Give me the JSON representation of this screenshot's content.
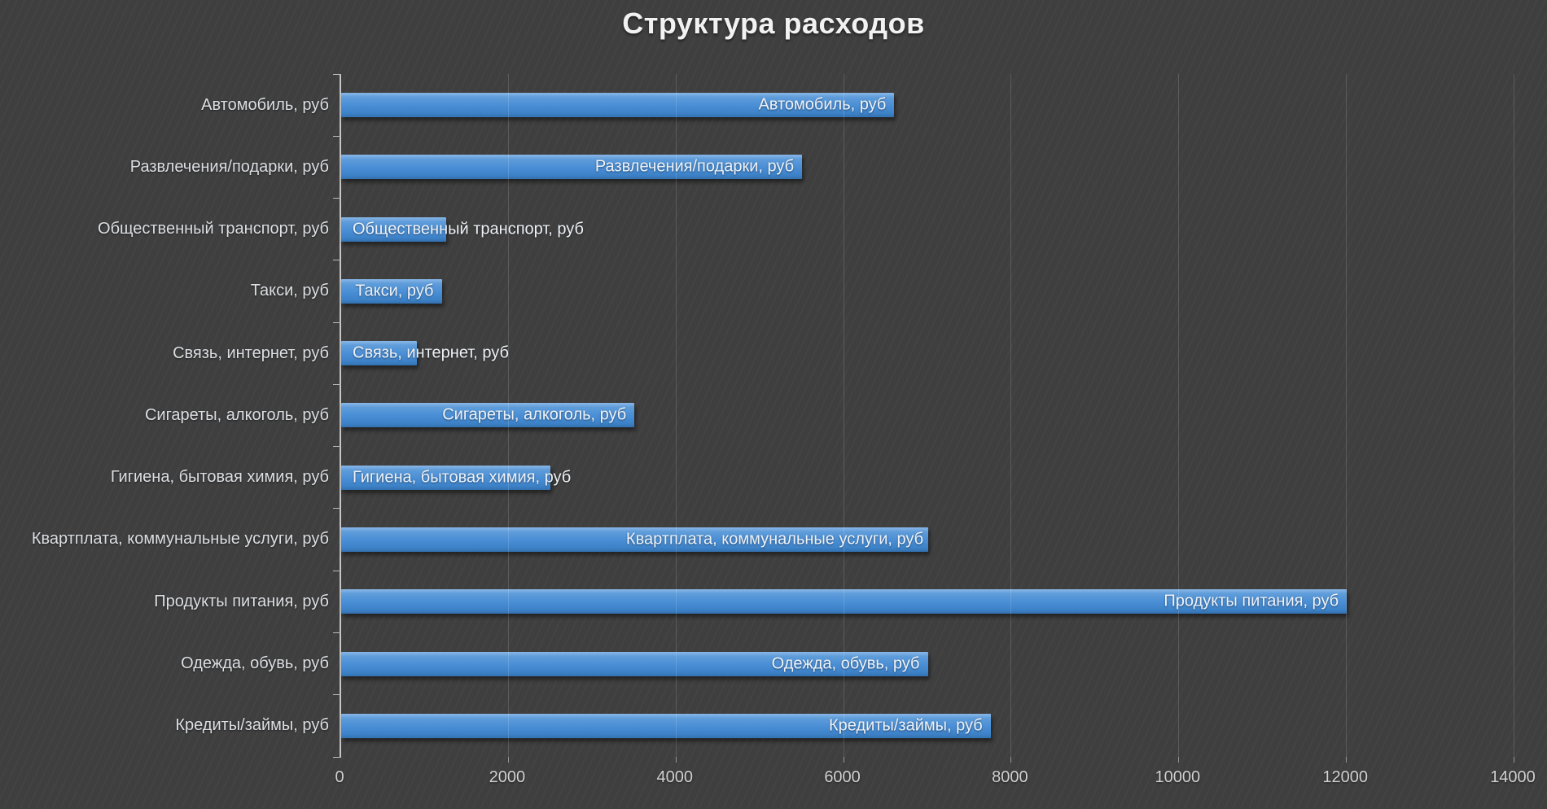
{
  "chart_data": {
    "type": "bar",
    "orientation": "horizontal",
    "title": "Структура расходов",
    "categories": [
      "Автомобиль, руб",
      "Развлечения/подарки, руб",
      "Общественный транспорт, руб",
      "Такси, руб",
      "Связь, интернет, руб",
      "Сигареты, алкоголь, руб",
      "Гигиена, бытовая химия, руб",
      "Квартплата, коммунальные услуги, руб",
      "Продукты питания, руб",
      "Одежда, обувь, руб",
      "Кредиты/займы, руб"
    ],
    "values": [
      6600,
      5500,
      1250,
      1200,
      900,
      3500,
      2500,
      7000,
      12000,
      7000,
      7750
    ],
    "data_labels": [
      "Автомобиль, руб",
      "Развлечения/подарки, руб",
      "Общественный транспорт, руб",
      "Такси, руб",
      "Связь, интернет, руб",
      "Сигареты, алкоголь, руб",
      "Гигиена, бытовая химия, руб",
      "Квартплата, коммунальные услуги, руб",
      "Продукты питания, руб",
      "Одежда, обувь, руб",
      "Кредиты/займы, руб"
    ],
    "wrapped_label_index": 7,
    "data_label_position": "inside-end, overflowing right on short bars",
    "xlabel": "",
    "ylabel": "",
    "xlim": [
      0,
      14000
    ],
    "x_ticks": [
      0,
      2000,
      4000,
      6000,
      8000,
      10000,
      12000,
      14000
    ],
    "grid": true,
    "legend": "none",
    "colors": {
      "background": "#3f3f3f",
      "bar_fill_top": "#8ab8e8",
      "bar_fill_mid": "#4a8ed5",
      "bar_fill_bottom": "#3371b1",
      "title_text": "#f2f2f2",
      "axis_text": "#d2d2d2",
      "category_text": "#dcdfe3",
      "gridline": "rgba(255,255,255,0.14)",
      "axis_line": "#c6c6c6"
    }
  }
}
